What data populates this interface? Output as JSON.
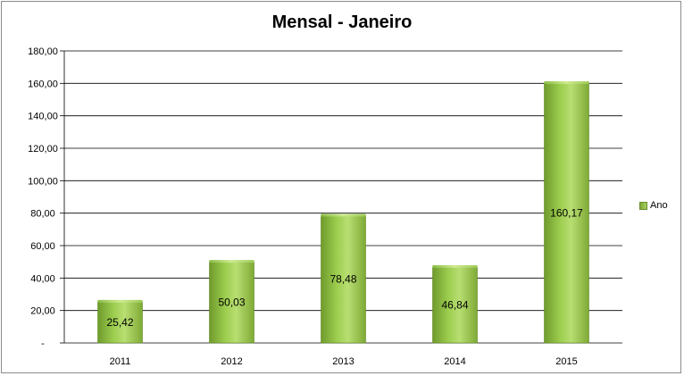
{
  "chart_data": {
    "type": "bar",
    "title": "Mensal - Janeiro",
    "categories": [
      "2011",
      "2012",
      "2013",
      "2014",
      "2015"
    ],
    "series": [
      {
        "name": "Ano",
        "values": [
          25.42,
          50.03,
          78.48,
          46.84,
          160.17
        ]
      }
    ],
    "data_labels": [
      "25,42",
      "50,03",
      "78,48",
      "46,84",
      "160,17"
    ],
    "y_ticks": [
      0,
      20,
      40,
      60,
      80,
      100,
      120,
      140,
      160,
      180
    ],
    "y_tick_labels": [
      "-",
      "20,00",
      "40,00",
      "60,00",
      "80,00",
      "100,00",
      "120,00",
      "140,00",
      "160,00",
      "180,00"
    ],
    "ylim": [
      0,
      180
    ],
    "xlabel": "",
    "ylabel": "",
    "grid": true,
    "legend_position": "right",
    "colors": {
      "bar_dark": "#6f9a2c",
      "bar_mid": "#9ccd4e",
      "bar_light": "#b8de72",
      "grid": "#000000"
    }
  }
}
